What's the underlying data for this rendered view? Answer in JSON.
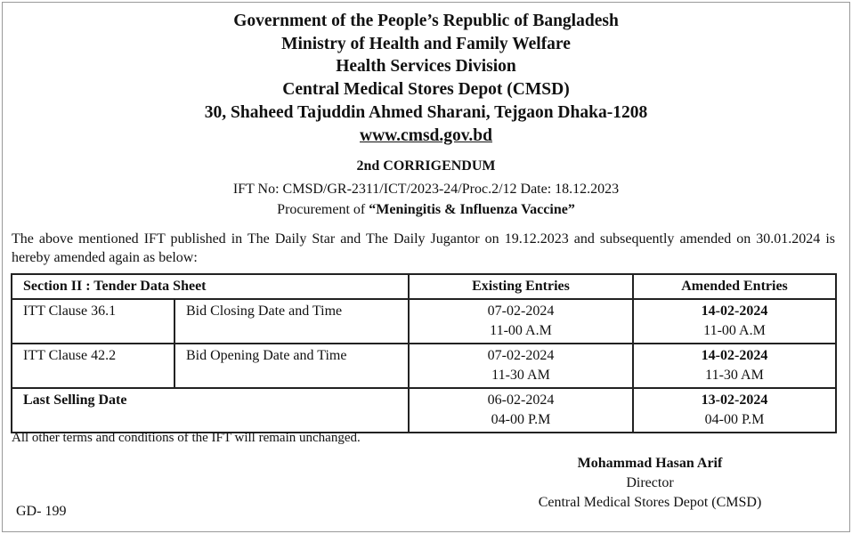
{
  "header": {
    "lines": [
      "Government of the People’s Republic of Bangladesh",
      "Ministry of Health and Family Welfare",
      "Health Services Division",
      "Central Medical Stores Depot (CMSD)",
      "30, Shaheed Tajuddin Ahmed Sharani, Tejgaon Dhaka-1208"
    ],
    "website": "www.cmsd.gov.bd"
  },
  "title": "2nd CORRIGENDUM",
  "ift_line": "IFT No: CMSD/GR-2311/ICT/2023-24/Proc.2/12 Date: 18.12.2023",
  "procurement_prefix": "Procurement of ",
  "procurement_item": "“Meningitis & Influenza Vaccine”",
  "intro": "The above mentioned IFT published in The Daily Star and The Daily Jugantor on 19.12.2023 and subsequently amended on 30.01.2024 is hereby amended again as below:",
  "table": {
    "headers": [
      "Section II : Tender Data Sheet",
      "Existing Entries",
      "Amended Entries"
    ],
    "rows": [
      {
        "clause": "ITT Clause 36.1",
        "item": "Bid Closing Date and Time",
        "existing_date": "07-02-2024",
        "existing_time": "11-00 A.M",
        "amended_date": "14-02-2024",
        "amended_time": "11-00 A.M"
      },
      {
        "clause": "ITT Clause 42.2",
        "item": "Bid Opening Date and Time",
        "existing_date": "07-02-2024",
        "existing_time": "11-30 AM",
        "amended_date": "14-02-2024",
        "amended_time": "11-30 AM"
      },
      {
        "clause": "Last Selling Date",
        "existing_date": "06-02-2024",
        "existing_time": "04-00 P.M",
        "amended_date": "13-02-2024",
        "amended_time": "04-00 P.M"
      }
    ]
  },
  "note": "All other terms and conditions of the IFT will remain unchanged.",
  "signature": {
    "name": "Mohammad Hasan Arif",
    "designation": "Director",
    "office": "Central Medical Stores Depot (CMSD)"
  },
  "ref": "GD- 199"
}
